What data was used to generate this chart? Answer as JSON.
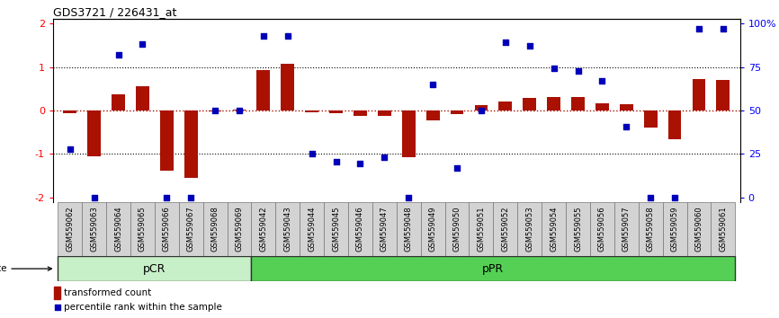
{
  "title": "GDS3721 / 226431_at",
  "samples": [
    "GSM559062",
    "GSM559063",
    "GSM559064",
    "GSM559065",
    "GSM559066",
    "GSM559067",
    "GSM559068",
    "GSM559069",
    "GSM559042",
    "GSM559043",
    "GSM559044",
    "GSM559045",
    "GSM559046",
    "GSM559047",
    "GSM559048",
    "GSM559049",
    "GSM559050",
    "GSM559051",
    "GSM559052",
    "GSM559053",
    "GSM559054",
    "GSM559055",
    "GSM559056",
    "GSM559057",
    "GSM559058",
    "GSM559059",
    "GSM559060",
    "GSM559061"
  ],
  "bar_values": [
    -0.07,
    -1.05,
    0.38,
    0.55,
    -1.38,
    -1.55,
    -0.03,
    0.02,
    0.92,
    1.08,
    -0.05,
    -0.07,
    -0.13,
    -0.13,
    -1.07,
    -0.22,
    -0.08,
    0.13,
    0.2,
    0.28,
    0.32,
    0.3,
    0.16,
    0.15,
    -0.4,
    -0.65,
    0.72,
    0.7
  ],
  "dot_values": [
    -0.88,
    -2.0,
    1.28,
    1.52,
    -2.0,
    -2.0,
    0.0,
    0.0,
    1.72,
    1.72,
    -0.98,
    -1.18,
    -1.22,
    -1.08,
    -2.0,
    0.6,
    -1.32,
    0.0,
    1.56,
    1.48,
    0.98,
    0.9,
    0.68,
    -0.38,
    -2.0,
    -2.0,
    1.88,
    1.88
  ],
  "pCR_count": 8,
  "pPR_count": 20,
  "bar_color": "#aa1100",
  "dot_color": "#0000bb",
  "pCR_color": "#c8f0c8",
  "pPR_color": "#55d055",
  "ylim_min": -2.1,
  "ylim_max": 2.1,
  "yticks": [
    -2,
    -1,
    0,
    1,
    2
  ],
  "right_ytick_pcts": [
    0,
    25,
    50,
    75,
    100
  ],
  "right_yticklabels": [
    "0",
    "25",
    "50",
    "75",
    "100%"
  ]
}
